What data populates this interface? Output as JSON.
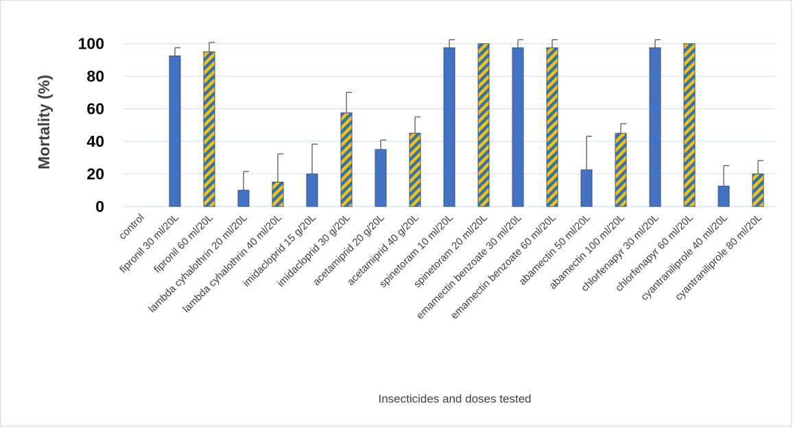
{
  "chart_data": {
    "type": "bar",
    "title": "",
    "xlabel": "Insecticides and doses tested",
    "ylabel": "Mortality (%)",
    "ylim": [
      0,
      110
    ],
    "yticks": [
      0,
      20,
      40,
      60,
      80,
      100
    ],
    "grid": true,
    "categories": [
      "control",
      "fipronil 30 ml/20L",
      "fipronil 60 ml/20L",
      "lambda cyhalothrin 20 ml/20L",
      "lambda cyhalothrin 40 ml/20L",
      "imidacloprid 15 g/20L",
      "imidacloprid 30 g/20L",
      "acetamiprid 20 g/20L",
      "acetamiprid 40 g/20L",
      "spinetoram 10 ml/20L",
      "spinetoram 20 ml/20L",
      "emamectin benzoate 30 ml/20L",
      "emamectin benzoate 60 ml/20L",
      "abamectin 50 ml/20L",
      "abamectin 100 ml/20L",
      "chlorfenapyr 30 ml/20L",
      "chlorfenapyr 60 ml/20L",
      "cyantraniliprole 40 ml/20L",
      "cyantraniliprole 80 ml/20L"
    ],
    "values": [
      0,
      92.5,
      95,
      10,
      15,
      20,
      57.5,
      35,
      45,
      97.5,
      100,
      97.5,
      97.5,
      22.5,
      45,
      97.5,
      100,
      12.5,
      20
    ],
    "error": [
      0,
      5,
      5.8,
      11.5,
      17.3,
      18.3,
      12.6,
      5.8,
      10,
      5,
      0,
      5,
      5,
      20.6,
      5.8,
      5,
      0,
      12.6,
      8.2
    ],
    "bar_style": [
      "solid",
      "solid",
      "hatched",
      "solid",
      "hatched",
      "solid",
      "hatched",
      "solid",
      "hatched",
      "solid",
      "hatched",
      "solid",
      "hatched",
      "solid",
      "hatched",
      "solid",
      "hatched",
      "solid",
      "hatched"
    ],
    "colors": {
      "solid": "#4472c4",
      "hatch_fill": "#ffc000",
      "hatch_stripe": "#2e75b6",
      "bar_edge": "#2f5597",
      "grid": "#d9e2f3",
      "error_bar": "#595959"
    }
  }
}
